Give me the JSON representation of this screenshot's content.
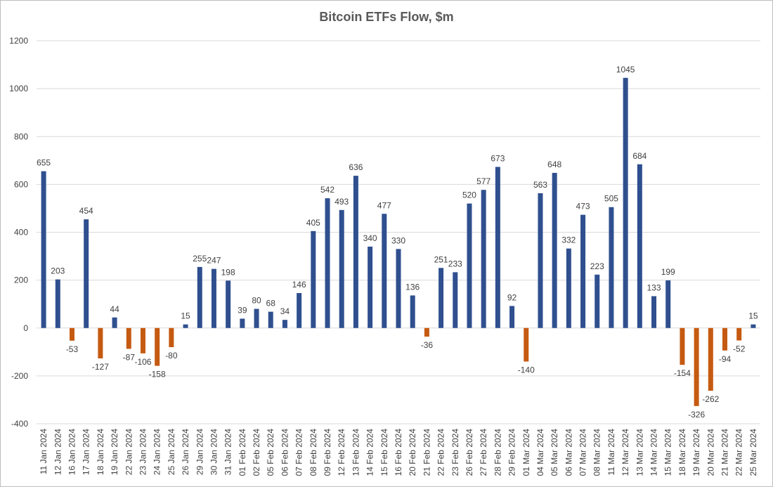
{
  "chart_data": {
    "type": "bar",
    "title": "Bitcoin ETFs Flow, $m",
    "xlabel": "",
    "ylabel": "",
    "ylim": [
      -400,
      1200
    ],
    "yticks": [
      -400,
      -200,
      0,
      200,
      400,
      600,
      800,
      1000,
      1200
    ],
    "grid": true,
    "legend": "none",
    "colors": {
      "positive": "#2f4f8f",
      "negative": "#c55a11",
      "grid": "#d9d9d9",
      "text": "#404040"
    },
    "categories": [
      "11 Jan 2024",
      "12 Jan 2024",
      "16 Jan 2024",
      "17 Jan 2024",
      "18 Jan 2024",
      "19 Jan 2024",
      "22 Jan 2024",
      "23 Jan 2024",
      "24 Jan 2024",
      "25 Jan 2024",
      "26 Jan 2024",
      "29 Jan 2024",
      "30 Jan 2024",
      "31 Jan 2024",
      "01 Feb 2024",
      "02 Feb 2024",
      "05 Feb 2024",
      "06 Feb 2024",
      "07 Feb 2024",
      "08 Feb 2024",
      "09 Feb 2024",
      "12 Feb 2024",
      "13 Feb 2024",
      "14 Feb 2024",
      "15 Feb 2024",
      "16 Feb 2024",
      "20 Feb 2024",
      "21 Feb 2024",
      "22 Feb 2024",
      "23 Feb 2024",
      "26 Feb 2024",
      "27 Feb 2024",
      "28 Feb 2024",
      "29 Feb 2024",
      "01 Mar 2024",
      "04 Mar 2024",
      "05 Mar 2024",
      "06 Mar 2024",
      "07 Mar 2024",
      "08 Mar 2024",
      "11 Mar 2024",
      "12 Mar 2024",
      "13 Mar 2024",
      "14 Mar 2024",
      "15 Mar 2024",
      "18 Mar 2024",
      "19 Mar 2024",
      "20 Mar 2024",
      "21 Mar 2024",
      "22 Mar 2024",
      "25 Mar 2024"
    ],
    "values": [
      655,
      203,
      -53,
      454,
      -127,
      44,
      -87,
      -106,
      -158,
      -80,
      15,
      255,
      247,
      198,
      39,
      80,
      68,
      34,
      146,
      405,
      542,
      493,
      636,
      340,
      477,
      330,
      136,
      -36,
      251,
      233,
      520,
      577,
      673,
      92,
      -140,
      563,
      648,
      332,
      473,
      223,
      505,
      1045,
      684,
      133,
      199,
      -154,
      -326,
      -262,
      -94,
      -52,
      15
    ]
  }
}
